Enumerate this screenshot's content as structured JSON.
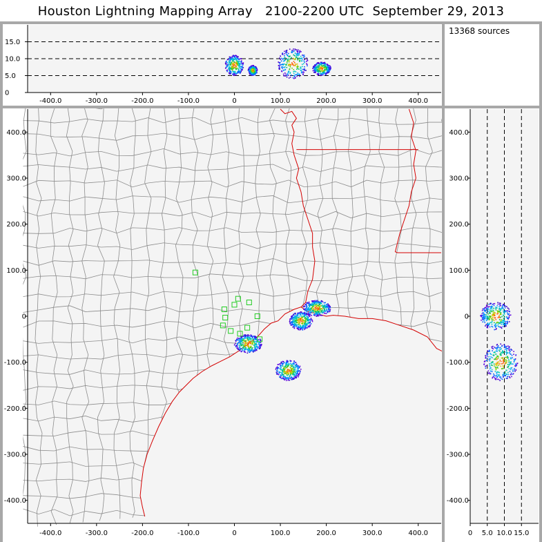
{
  "title": "Houston Lightning Mapping Array   2100-2200 UTC  September 29, 2013",
  "source_count": "13368 sources",
  "colors": {
    "background": "#f4f4f4",
    "panel_border": "#a8a8a8",
    "county_lines": "#8c8c8c",
    "state_lines": "#d40000",
    "stations": "#22cc22"
  },
  "chart_data": [
    {
      "type": "scatter",
      "title": "",
      "xlabel": "",
      "ylabel": "",
      "xlim": [
        -450,
        450
      ],
      "ylim": [
        0,
        20
      ],
      "xticks": [
        "-400.0",
        "-300.0",
        "-200.0",
        "-100.0",
        "0",
        "100.0",
        "200.0",
        "300.0",
        "400.0"
      ],
      "yticks": [
        "0",
        "5.0",
        "10.0",
        "15.0"
      ],
      "grid_lines": [
        5,
        10,
        15
      ],
      "clusters": [
        {
          "x": [
            -20,
            20
          ],
          "y": [
            5,
            11
          ]
        },
        {
          "x": [
            30,
            50
          ],
          "y": [
            5,
            8
          ]
        },
        {
          "x": [
            95,
            160
          ],
          "y": [
            4,
            13
          ]
        },
        {
          "x": [
            170,
            210
          ],
          "y": [
            5,
            9
          ]
        }
      ]
    },
    {
      "type": "scatter",
      "title": "",
      "xlabel": "",
      "ylabel": "",
      "xlim": [
        -450,
        450
      ],
      "ylim": [
        -450,
        450
      ],
      "xticks": [
        "-400.0",
        "-300.0",
        "-200.0",
        "-100.0",
        "0",
        "100.0",
        "200.0",
        "300.0",
        "400.0"
      ],
      "yticks": [
        "400.0",
        "300.0",
        "200.0",
        "100.0",
        "0",
        "-100.0",
        "-200.0",
        "-300.0",
        "-400.0"
      ],
      "stations": [
        {
          "x": -85,
          "y": 95
        },
        {
          "x": -22,
          "y": 15
        },
        {
          "x": 0,
          "y": 25
        },
        {
          "x": 8,
          "y": 38
        },
        {
          "x": 32,
          "y": 30
        },
        {
          "x": -20,
          "y": -3
        },
        {
          "x": -25,
          "y": -20
        },
        {
          "x": -8,
          "y": -32
        },
        {
          "x": 12,
          "y": -38
        },
        {
          "x": 28,
          "y": -25
        },
        {
          "x": 50,
          "y": 0
        },
        {
          "x": 55,
          "y": -50
        }
      ],
      "clusters": [
        {
          "x": [
            120,
            170
          ],
          "y": [
            -30,
            10
          ]
        },
        {
          "x": [
            150,
            210
          ],
          "y": [
            0,
            35
          ]
        },
        {
          "x": [
            90,
            145
          ],
          "y": [
            -140,
            -95
          ]
        },
        {
          "x": [
            0,
            60
          ],
          "y": [
            -80,
            -40
          ]
        }
      ]
    },
    {
      "type": "scatter",
      "title": "",
      "xlabel": "",
      "ylabel": "",
      "xlim": [
        0,
        20
      ],
      "ylim": [
        -450,
        450
      ],
      "xticks": [
        "0",
        "5.0",
        "10.0",
        "15.0"
      ],
      "yticks": [
        "400.0",
        "300.0",
        "200.0",
        "100.0",
        "0",
        "-100.0",
        "-200.0",
        "-300.0",
        "-400.0"
      ],
      "grid_lines": [
        5,
        10,
        15
      ],
      "clusters": [
        {
          "x": [
            3,
            12
          ],
          "y": [
            -30,
            30
          ]
        },
        {
          "x": [
            4,
            14
          ],
          "y": [
            -140,
            -60
          ]
        }
      ]
    }
  ]
}
